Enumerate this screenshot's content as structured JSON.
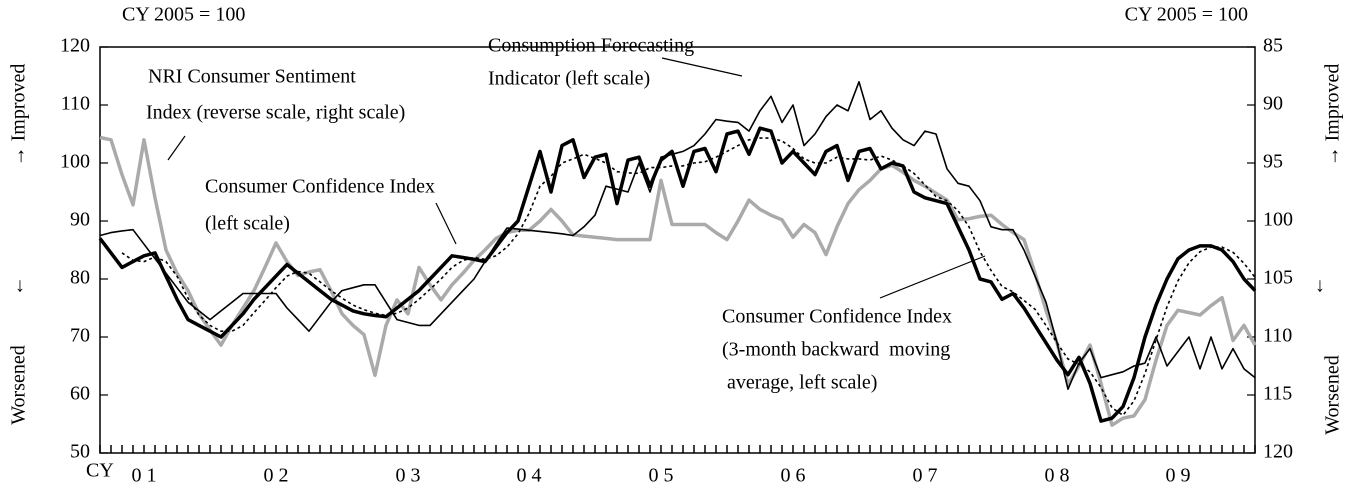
{
  "chart_data": {
    "type": "line",
    "left_unit": "CY 2005 = 100",
    "right_unit": "CY 2005 = 100",
    "x_label": "CY",
    "side_labels": {
      "improved": "→ Improved",
      "down": "↓",
      "worsened": "Worsened"
    },
    "categories": [
      null,
      null,
      null,
      null,
      "0 1",
      null,
      null,
      null,
      null,
      null,
      null,
      null,
      null,
      null,
      null,
      null,
      "0 2",
      null,
      null,
      null,
      null,
      null,
      null,
      null,
      null,
      null,
      null,
      null,
      "0 3",
      null,
      null,
      null,
      null,
      null,
      null,
      null,
      null,
      null,
      null,
      "0 4",
      null,
      null,
      null,
      null,
      null,
      null,
      null,
      null,
      null,
      null,
      null,
      "0 5",
      null,
      null,
      null,
      null,
      null,
      null,
      null,
      null,
      null,
      null,
      null,
      "0 6",
      null,
      null,
      null,
      null,
      null,
      null,
      null,
      null,
      null,
      null,
      null,
      "0 7",
      null,
      null,
      null,
      null,
      null,
      null,
      null,
      null,
      null,
      null,
      null,
      "0 8",
      null,
      null,
      null,
      null,
      null,
      null,
      null,
      null,
      null,
      null,
      "0 9",
      null,
      null,
      null,
      null,
      null,
      null,
      null
    ],
    "ylim": [
      50,
      120
    ],
    "yticks": [
      50,
      60,
      70,
      80,
      90,
      100,
      110,
      120
    ],
    "y2lim": [
      120,
      85
    ],
    "y2ticks": [
      85,
      90,
      95,
      100,
      105,
      110,
      115,
      120
    ],
    "series": [
      {
        "label": [
          "NRI Consumer Sentiment",
          "Index (reverse scale, right scale)"
        ],
        "color": "#aaaaaa",
        "width": 3.5,
        "axis": "y2",
        "values": [
          92.8,
          93,
          96,
          98.6,
          93,
          98,
          102.5,
          104.5,
          106,
          108,
          109.4,
          110.7,
          109,
          107.5,
          106,
          104,
          101.9,
          103.5,
          104.7,
          104.4,
          104.2,
          106,
          108,
          109,
          109.8,
          113.3,
          109,
          106.8,
          108,
          104,
          105.5,
          106.8,
          105.5,
          104.5,
          103.4,
          102.5,
          101.5,
          101,
          100.8,
          100.8,
          100,
          99,
          100,
          101.2,
          101.3,
          101.4,
          101.5,
          101.6,
          101.6,
          101.6,
          101.6,
          96.5,
          100.3,
          100.3,
          100.3,
          100.3,
          101,
          101.6,
          100,
          98.2,
          99,
          99.5,
          99.9,
          101.4,
          100.3,
          101,
          102.9,
          100.5,
          98.5,
          97.3,
          96.5,
          95.5,
          95.2,
          95.8,
          96.5,
          97,
          97.6,
          98.2,
          99.9,
          99.8,
          99.6,
          99.5,
          100.3,
          101,
          101.6,
          104.5,
          107.7,
          110.5,
          114.1,
          112.5,
          110.7,
          114,
          117.6,
          117,
          116.8,
          115.4,
          112,
          109,
          107.7,
          107.9,
          108.1,
          107.3,
          106.6,
          110.3,
          109,
          110.7
        ]
      },
      {
        "label": [
          "Consumption Forecasting",
          "Indicator (left scale)"
        ],
        "color": "#000000",
        "width": 1.6,
        "values": [
          87.5,
          88,
          88.3,
          88.5,
          86,
          83.5,
          81,
          78.5,
          76,
          74.5,
          73,
          74.5,
          76,
          77.5,
          77.5,
          77.5,
          77.5,
          75,
          73,
          71,
          73.5,
          76,
          78,
          78.5,
          79,
          79,
          76,
          73,
          72.5,
          72,
          72,
          74,
          76,
          78,
          80,
          83,
          86,
          88.8,
          88.6,
          88.4,
          88.2,
          88,
          87.8,
          87.5,
          89,
          91,
          96,
          95.5,
          95,
          100,
          95,
          101,
          101.5,
          102,
          103,
          105,
          107.5,
          107.2,
          107,
          105.5,
          109,
          111.5,
          107,
          110,
          103,
          105,
          108,
          110,
          109,
          114,
          107.5,
          109,
          106,
          104,
          103,
          105.5,
          105,
          99,
          96.5,
          96,
          93.5,
          89,
          88.5,
          88.5,
          85,
          80.5,
          76,
          69,
          61,
          65.5,
          68,
          63,
          63.5,
          64,
          65,
          65.5,
          70,
          65,
          67.5,
          70,
          64.5,
          70,
          64.5,
          68,
          64.5,
          63
        ]
      },
      {
        "label": [
          "Consumer Confidence Index",
          "(3-month backward  moving",
          " average, left scale)"
        ],
        "color": "#000000",
        "width": 1.6,
        "dash": "3 3",
        "values": [
          null,
          null,
          84.5,
          83.2,
          83,
          83.8,
          83,
          80.5,
          76.7,
          73.8,
          72,
          71,
          71,
          72,
          74.2,
          76.3,
          78.5,
          80.5,
          81.3,
          81,
          79.5,
          78,
          76.7,
          75.5,
          74.7,
          74.1,
          73.7,
          74.1,
          75,
          76.5,
          78.2,
          80,
          82,
          83.2,
          83.7,
          83.4,
          84,
          85.5,
          87.8,
          91.3,
          96,
          97.7,
          100,
          100.7,
          101.5,
          100.8,
          100,
          98.5,
          98.3,
          98.2,
          99.2,
          99.2,
          99.5,
          99.5,
          100,
          100.2,
          101,
          102,
          103,
          104,
          104.3,
          104.3,
          103.8,
          102.5,
          100.7,
          100,
          100,
          101,
          100.7,
          100.7,
          100.5,
          101.2,
          100.5,
          99.5,
          98.2,
          96.2,
          94.2,
          93.5,
          91.8,
          89,
          84.7,
          81.5,
          78.7,
          77.8,
          76.3,
          74.8,
          72,
          69,
          66.2,
          65.3,
          64,
          61.3,
          57.8,
          56.5,
          59,
          63.7,
          69.5,
          75.2,
          79.7,
          82.8,
          84.7,
          85.5,
          85.5,
          84.6,
          82.7,
          80.3
        ]
      },
      {
        "label": [
          "Consumer Confidence Index",
          "(left scale)"
        ],
        "color": "#000000",
        "width": 3.5,
        "values": [
          87,
          84.5,
          82,
          83,
          84,
          84.5,
          80.5,
          76.5,
          73,
          72,
          71,
          70,
          72,
          74,
          76.5,
          78.5,
          80.5,
          82.5,
          81,
          79.5,
          78,
          76.5,
          75.5,
          74.5,
          74,
          73.7,
          73.5,
          75,
          76.5,
          78,
          80,
          82,
          84,
          83.7,
          83.4,
          83,
          85.5,
          88,
          90,
          96,
          102,
          95,
          103,
          104,
          97.5,
          101,
          101.5,
          93,
          100.5,
          101,
          96,
          100.5,
          102,
          96,
          102,
          102.5,
          98.5,
          105,
          105.5,
          101.5,
          106,
          105.5,
          100,
          102,
          100,
          98,
          102,
          103,
          97,
          102,
          102.5,
          99,
          100,
          99.5,
          95,
          94,
          93.5,
          93,
          89,
          85,
          80,
          79.5,
          76.5,
          77.5,
          75,
          72,
          69,
          66,
          63.5,
          66.5,
          62,
          55.5,
          56,
          58,
          63,
          70,
          75.5,
          80,
          83.5,
          85,
          85.7,
          85.7,
          85,
          83,
          80,
          78
        ]
      }
    ]
  }
}
